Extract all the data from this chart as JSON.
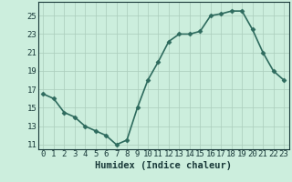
{
  "x": [
    0,
    1,
    2,
    3,
    4,
    5,
    6,
    7,
    8,
    9,
    10,
    11,
    12,
    13,
    14,
    15,
    16,
    17,
    18,
    19,
    20,
    21,
    22,
    23
  ],
  "y": [
    16.5,
    16.0,
    14.5,
    14.0,
    13.0,
    12.5,
    12.0,
    11.0,
    11.5,
    15.0,
    18.0,
    20.0,
    22.2,
    23.0,
    23.0,
    23.3,
    25.0,
    25.2,
    25.5,
    25.5,
    23.5,
    21.0,
    19.0,
    18.0
  ],
  "line_color": "#2e6b5e",
  "marker": "D",
  "marker_size": 2.5,
  "bg_color": "#cceedd",
  "grid_color": "#aaccbb",
  "xlabel": "Humidex (Indice chaleur)",
  "ylim": [
    10.5,
    26.5
  ],
  "xlim": [
    -0.5,
    23.5
  ],
  "yticks": [
    11,
    13,
    15,
    17,
    19,
    21,
    23,
    25
  ],
  "xticks": [
    0,
    1,
    2,
    3,
    4,
    5,
    6,
    7,
    8,
    9,
    10,
    11,
    12,
    13,
    14,
    15,
    16,
    17,
    18,
    19,
    20,
    21,
    22,
    23
  ],
  "linewidth": 1.2,
  "xlabel_fontsize": 7.5,
  "tick_fontsize": 6.5,
  "font_color": "#1a3a3a"
}
